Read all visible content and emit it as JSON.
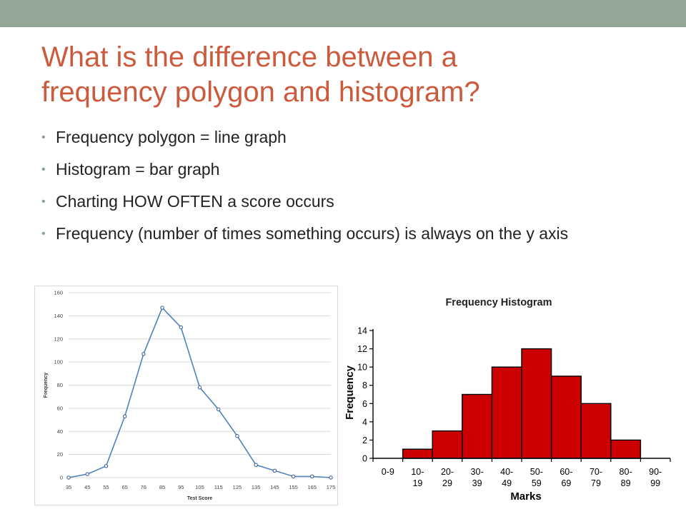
{
  "title_lines": [
    "What is the difference between a",
    "frequency polygon and histogram?"
  ],
  "bullets": [
    "Frequency polygon =  line graph",
    "Histogram =  bar graph",
    "Charting HOW OFTEN a score occurs",
    "Frequency (number of times something occurs) is always on the y axis"
  ],
  "colors": {
    "title": "#cc5a3c",
    "top_bar": "#95a597",
    "line": "#4f81bd",
    "bar": "#cc0000"
  },
  "chart_data": [
    {
      "type": "line",
      "title": "",
      "xlabel": "Test Score",
      "ylabel": "Frequency",
      "x": [
        "35",
        "45",
        "55",
        "65",
        "76",
        "85",
        "95",
        "105",
        "115",
        "125",
        "135",
        "145",
        "155",
        "165",
        "175"
      ],
      "values": [
        0,
        3,
        10,
        53,
        107,
        147,
        130,
        78,
        59,
        36,
        11,
        6,
        1,
        1,
        0
      ],
      "yticks": [
        0,
        20,
        40,
        60,
        80,
        100,
        120,
        140,
        160
      ],
      "ylim": [
        0,
        160
      ],
      "grid": true
    },
    {
      "type": "bar",
      "title": "Frequency Histogram",
      "xlabel": "Marks",
      "ylabel": "Frequency",
      "categories": [
        [
          "0-9",
          ""
        ],
        [
          "10-",
          "19"
        ],
        [
          "20-",
          "29"
        ],
        [
          "30-",
          "39"
        ],
        [
          "40-",
          "49"
        ],
        [
          "50-",
          "59"
        ],
        [
          "60-",
          "69"
        ],
        [
          "70-",
          "79"
        ],
        [
          "80-",
          "89"
        ],
        [
          "90-",
          "99"
        ]
      ],
      "values": [
        0,
        1,
        3,
        7,
        10,
        12,
        9,
        6,
        2,
        0
      ],
      "yticks": [
        0,
        2,
        4,
        6,
        8,
        10,
        12,
        14
      ],
      "ylim": [
        0,
        14
      ],
      "grid": false
    }
  ]
}
